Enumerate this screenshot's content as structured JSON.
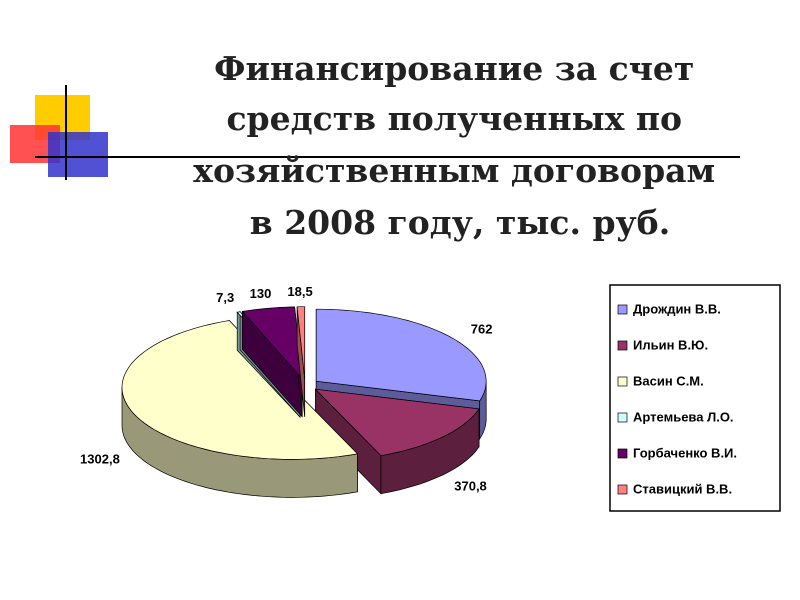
{
  "chart_data": {
    "type": "pie",
    "title": [
      "Финансирование за счет",
      "средств полученных по",
      "хозяйственным договорам",
      "в 2008 году, тыс. руб."
    ],
    "categories": [
      "Дрождин В.В.",
      "Ильин В.Ю.",
      "Васин С.М.",
      "Артемьева Л.О.",
      "Горбаченко В.И.",
      "Ставицкий В.В."
    ],
    "values": [
      762,
      370.8,
      1302.8,
      7.3,
      130,
      18.5
    ],
    "value_labels": [
      "762",
      "370,8",
      "1302,8",
      "7,3",
      "130",
      "18,5"
    ],
    "colors": [
      "#9999ff",
      "#993366",
      "#ffffcc",
      "#ccffff",
      "#660066",
      "#ff8080"
    ],
    "legend": "right"
  }
}
